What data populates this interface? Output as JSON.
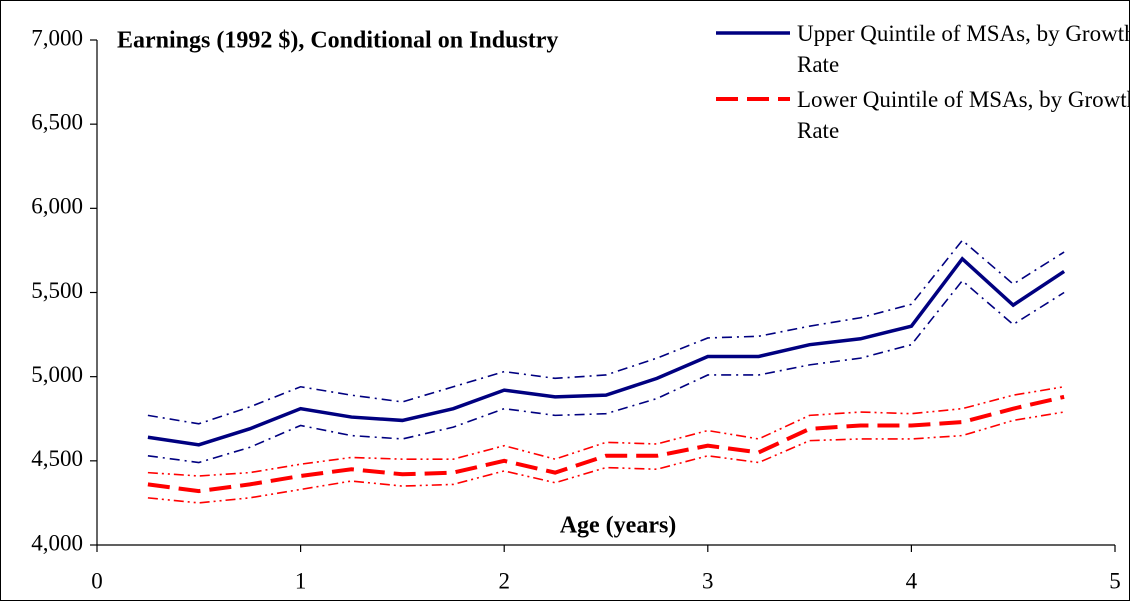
{
  "chart_data": {
    "type": "line",
    "title": "Earnings (1992 $), Conditional on Industry",
    "x_label": "Age (years)",
    "x": [
      0.25,
      0.5,
      0.75,
      1,
      1.25,
      1.5,
      1.75,
      2,
      2.25,
      2.5,
      2.75,
      3,
      3.25,
      3.5,
      3.75,
      4,
      4.25,
      4.5,
      4.75
    ],
    "xlim": [
      0,
      5
    ],
    "xticks": [
      0,
      1,
      2,
      3,
      4,
      5
    ],
    "ylim": [
      4000,
      7000
    ],
    "yticks": [
      {
        "value": 4000,
        "label": "4,000"
      },
      {
        "value": 4500,
        "label": "4,500"
      },
      {
        "value": 5000,
        "label": "5,000"
      },
      {
        "value": 5500,
        "label": "5,500"
      },
      {
        "value": 6000,
        "label": "6,000"
      },
      {
        "value": 6500,
        "label": "6,500"
      },
      {
        "value": 7000,
        "label": "7,000"
      }
    ],
    "legend": "upper-right",
    "series": [
      {
        "name": "Upper Quintile of MSAs, by Growth Rate",
        "color": "#000080",
        "dash": "solid",
        "width": 3.5,
        "values": [
          4640,
          4595,
          4690,
          4810,
          4760,
          4740,
          4810,
          4920,
          4880,
          4890,
          4990,
          5120,
          5120,
          5190,
          5225,
          5300,
          5700,
          5425,
          5625
        ]
      },
      {
        "color": "#000080",
        "dash": "dash-dot",
        "width": 1.6,
        "values": [
          4770,
          4720,
          4820,
          4940,
          4890,
          4850,
          4940,
          5030,
          4990,
          5010,
          5110,
          5230,
          5240,
          5300,
          5350,
          5430,
          5810,
          5550,
          5740
        ]
      },
      {
        "color": "#000080",
        "dash": "dash-dot",
        "width": 1.6,
        "values": [
          4530,
          4490,
          4580,
          4710,
          4650,
          4630,
          4700,
          4810,
          4770,
          4780,
          4870,
          5010,
          5010,
          5070,
          5110,
          5190,
          5570,
          5310,
          5500
        ]
      },
      {
        "name": "Lower Quintile of MSAs, by Growth Rate",
        "color": "#ff0000",
        "dash": "dash",
        "width": 4,
        "values": [
          4360,
          4320,
          4360,
          4410,
          4450,
          4420,
          4430,
          4500,
          4430,
          4530,
          4530,
          4590,
          4550,
          4690,
          4710,
          4710,
          4730,
          4810,
          4880
        ]
      },
      {
        "color": "#ff0000",
        "dash": "dash-dot-dot",
        "width": 1.6,
        "values": [
          4430,
          4410,
          4430,
          4480,
          4520,
          4510,
          4510,
          4590,
          4510,
          4610,
          4600,
          4680,
          4630,
          4770,
          4790,
          4780,
          4810,
          4890,
          4940
        ]
      },
      {
        "color": "#ff0000",
        "dash": "dash-dot-dot",
        "width": 1.6,
        "values": [
          4280,
          4250,
          4280,
          4330,
          4380,
          4350,
          4360,
          4440,
          4370,
          4460,
          4450,
          4530,
          4490,
          4620,
          4630,
          4630,
          4650,
          4740,
          4790
        ]
      }
    ]
  }
}
